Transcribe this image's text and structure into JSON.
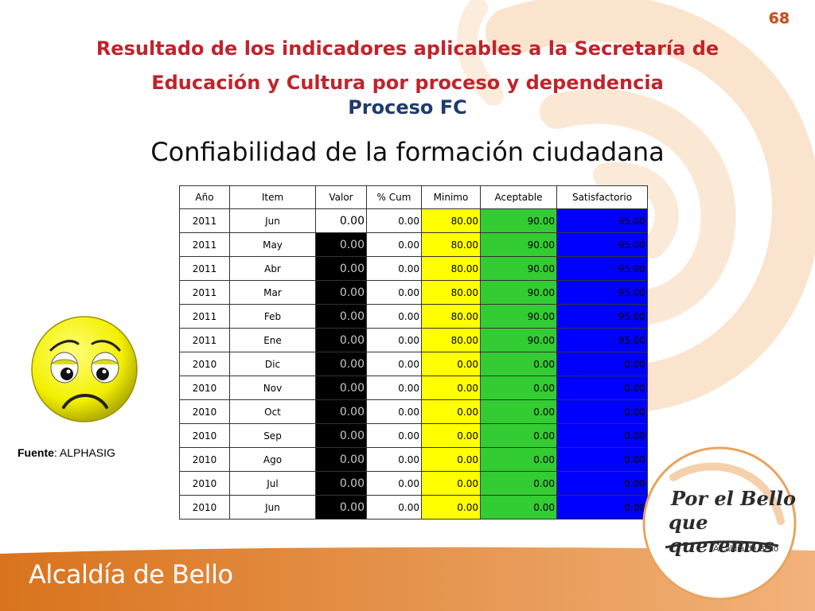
{
  "slide": {
    "page_number": "68",
    "title_line1": "Resultado de los indicadores aplicables a la Secretaría de",
    "title_line2": "Educación y Cultura por proceso y dependencia",
    "subtitle": "Proceso FC",
    "heading": "Confiabilidad de la formación ciudadana",
    "source_label": "Fuente",
    "source_value": ": ALPHASIG",
    "footer_brand": "Alcaldía de Bello",
    "logo_line1": "Por el Bello",
    "logo_line2": "que queremos",
    "logo_sub": "Alcaldía de Bello"
  },
  "colors": {
    "title": "#c0242b",
    "subtitle": "#1f3a6e",
    "minimo": "#ffff00",
    "aceptable": "#33cc33",
    "satisfactorio": "#0000ff",
    "valor": "#000000",
    "footer": "#d9741f"
  },
  "table": {
    "headers": [
      "Año",
      "Item",
      "Valor",
      "% Cum",
      "Minimo",
      "Aceptable",
      "Satisfactorio"
    ],
    "rows": [
      [
        "2011",
        "Jun",
        "0.00",
        "0.00",
        "80.00",
        "90.00",
        "95.00"
      ],
      [
        "2011",
        "May",
        "0.00",
        "0.00",
        "80.00",
        "90.00",
        "95.00"
      ],
      [
        "2011",
        "Abr",
        "0.00",
        "0.00",
        "80.00",
        "90.00",
        "95.00"
      ],
      [
        "2011",
        "Mar",
        "0.00",
        "0.00",
        "80.00",
        "90.00",
        "95.00"
      ],
      [
        "2011",
        "Feb",
        "0.00",
        "0.00",
        "80.00",
        "90.00",
        "95.00"
      ],
      [
        "2011",
        "Ene",
        "0.00",
        "0.00",
        "80.00",
        "90.00",
        "95.00"
      ],
      [
        "2010",
        "Dic",
        "0.00",
        "0.00",
        "0.00",
        "0.00",
        "0.00"
      ],
      [
        "2010",
        "Nov",
        "0.00",
        "0.00",
        "0.00",
        "0.00",
        "0.00"
      ],
      [
        "2010",
        "Oct",
        "0.00",
        "0.00",
        "0.00",
        "0.00",
        "0.00"
      ],
      [
        "2010",
        "Sep",
        "0.00",
        "0.00",
        "0.00",
        "0.00",
        "0.00"
      ],
      [
        "2010",
        "Ago",
        "0.00",
        "0.00",
        "0.00",
        "0.00",
        "0.00"
      ],
      [
        "2010",
        "Jul",
        "0.00",
        "0.00",
        "0.00",
        "0.00",
        "0.00"
      ],
      [
        "2010",
        "Jun",
        "0.00",
        "0.00",
        "0.00",
        "0.00",
        "0.00"
      ]
    ]
  },
  "icons": {
    "smiley": "sad-face-icon",
    "logo": "por-el-bello-logo"
  }
}
